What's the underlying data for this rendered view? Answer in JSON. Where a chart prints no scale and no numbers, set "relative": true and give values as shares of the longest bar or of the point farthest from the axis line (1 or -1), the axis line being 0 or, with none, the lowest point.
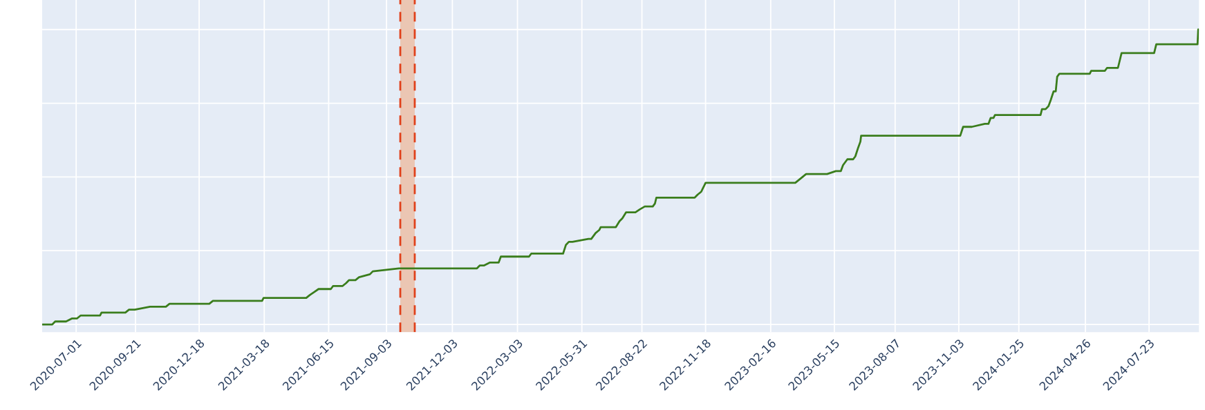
{
  "chart_data": {
    "type": "line",
    "relative": true,
    "tick_labels": "x",
    "grid": true,
    "marker": "none",
    "line_style": "solid",
    "xlim": [
      "2020-05-15",
      "2024-09-30"
    ],
    "xticks": [
      "2020-07-01",
      "2020-09-21",
      "2020-12-18",
      "2021-03-18",
      "2021-06-15",
      "2021-09-03",
      "2021-12-03",
      "2022-03-03",
      "2022-05-31",
      "2022-08-22",
      "2022-11-18",
      "2023-02-16",
      "2023-05-15",
      "2023-08-07",
      "2023-11-03",
      "2024-01-25",
      "2024-04-26",
      "2024-07-23"
    ],
    "bands": [
      {
        "axis": "x",
        "from": "2021-09-22",
        "to": "2021-10-12",
        "color": "#ebc6b3"
      }
    ],
    "ref_lines": [
      {
        "axis": "x",
        "value": "2021-09-22",
        "color": "#e0401a",
        "line_style": "dashed"
      },
      {
        "axis": "x",
        "value": "2021-10-12",
        "color": "#e0401a",
        "line_style": "dashed"
      }
    ],
    "series": [
      {
        "color": "#3a7d1c",
        "x": [
          "2020-05-15",
          "2020-05-29",
          "2020-06-02",
          "2020-06-13",
          "2020-06-17",
          "2020-06-25",
          "2020-07-02",
          "2020-07-07",
          "2020-07-13",
          "2020-08-03",
          "2020-08-05",
          "2020-09-07",
          "2020-09-12",
          "2020-09-20",
          "2020-10-11",
          "2020-10-14",
          "2020-11-02",
          "2020-11-07",
          "2020-12-18",
          "2020-12-22",
          "2021-01-01",
          "2021-01-06",
          "2021-03-03",
          "2021-03-07",
          "2021-03-15",
          "2021-03-17",
          "2021-05-15",
          "2021-05-20",
          "2021-05-26",
          "2021-06-01",
          "2021-06-18",
          "2021-06-21",
          "2021-07-04",
          "2021-07-09",
          "2021-07-13",
          "2021-07-22",
          "2021-07-27",
          "2021-08-11",
          "2021-08-15",
          "2021-09-20",
          "2021-09-22",
          "2022-01-06",
          "2022-01-10",
          "2022-01-16",
          "2022-01-24",
          "2022-02-05",
          "2022-02-08",
          "2022-02-18",
          "2022-02-21",
          "2022-03-19",
          "2022-03-22",
          "2022-05-05",
          "2022-05-09",
          "2022-05-13",
          "2022-05-18",
          "2022-06-09",
          "2022-06-13",
          "2022-06-19",
          "2022-06-24",
          "2022-06-26",
          "2022-07-17",
          "2022-07-22",
          "2022-07-26",
          "2022-07-31",
          "2022-08-02",
          "2022-08-13",
          "2022-08-19",
          "2022-08-26",
          "2022-09-06",
          "2022-09-09",
          "2022-09-11",
          "2022-11-03",
          "2022-11-07",
          "2022-11-12",
          "2022-11-14",
          "2022-11-18",
          "2022-12-12",
          "2022-12-14",
          "2023-03-22",
          "2023-03-27",
          "2023-04-01",
          "2023-04-06",
          "2023-05-02",
          "2023-05-05",
          "2023-05-17",
          "2023-05-24",
          "2023-05-27",
          "2023-06-02",
          "2023-06-10",
          "2023-06-13",
          "2023-06-17",
          "2023-06-20",
          "2023-06-21",
          "2023-07-03",
          "2023-07-06",
          "2023-11-05",
          "2023-11-09",
          "2023-11-18",
          "2023-11-21",
          "2023-12-09",
          "2023-12-14",
          "2023-12-17",
          "2023-12-21",
          "2023-12-23",
          "2024-02-24",
          "2024-02-26",
          "2024-03-02",
          "2024-03-06",
          "2024-03-09",
          "2024-03-13",
          "2024-03-16",
          "2024-03-18",
          "2024-03-21",
          "2024-05-02",
          "2024-05-04",
          "2024-05-23",
          "2024-05-26",
          "2024-06-10",
          "2024-06-12",
          "2024-06-15",
          "2024-07-30",
          "2024-08-02",
          "2024-09-28",
          "2024-09-29"
        ],
        "values": [
          0,
          0,
          0.01,
          0.01,
          0.01,
          0.02,
          0.02,
          0.03,
          0.03,
          0.03,
          0.04,
          0.04,
          0.05,
          0.05,
          0.06,
          0.06,
          0.06,
          0.07,
          0.07,
          0.07,
          0.07,
          0.08,
          0.08,
          0.08,
          0.08,
          0.09,
          0.09,
          0.1,
          0.11,
          0.12,
          0.12,
          0.13,
          0.13,
          0.14,
          0.15,
          0.15,
          0.16,
          0.17,
          0.18,
          0.19,
          0.19,
          0.19,
          0.2,
          0.2,
          0.21,
          0.21,
          0.23,
          0.23,
          0.23,
          0.23,
          0.24,
          0.24,
          0.27,
          0.28,
          0.28,
          0.29,
          0.29,
          0.31,
          0.32,
          0.33,
          0.33,
          0.35,
          0.36,
          0.38,
          0.38,
          0.38,
          0.39,
          0.4,
          0.4,
          0.41,
          0.43,
          0.43,
          0.44,
          0.45,
          0.46,
          0.48,
          0.48,
          0.48,
          0.48,
          0.49,
          0.5,
          0.51,
          0.51,
          0.51,
          0.52,
          0.52,
          0.54,
          0.56,
          0.56,
          0.57,
          0.6,
          0.62,
          0.64,
          0.64,
          0.64,
          0.64,
          0.67,
          0.67,
          0.67,
          0.68,
          0.68,
          0.7,
          0.7,
          0.71,
          0.71,
          0.73,
          0.73,
          0.74,
          0.76,
          0.79,
          0.79,
          0.84,
          0.85,
          0.85,
          0.86,
          0.86,
          0.87,
          0.87,
          0.89,
          0.92,
          0.92,
          0.95,
          0.95,
          1
        ]
      }
    ]
  }
}
